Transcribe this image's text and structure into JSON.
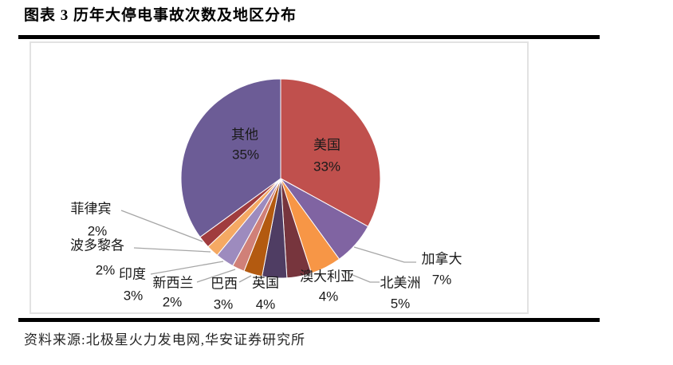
{
  "page": {
    "title": "图表 3 历年大停电事故次数及地区分布",
    "source": "资料来源:北极星火力发电网,华安证券研究所"
  },
  "chart_data": {
    "type": "pie",
    "title": "历年大停电事故次数及地区分布",
    "value_unit": "percent",
    "total": 100,
    "start_angle_deg": 0,
    "direction": "clockwise",
    "legend_position": "none",
    "leader_line_color": "#a6a6a6",
    "label_text_color": "#1a1a1a",
    "slices": [
      {
        "label": "美国",
        "value": 33,
        "pct_text": "33%",
        "color": "#C0504D",
        "label_inside": true
      },
      {
        "label": "加拿大",
        "value": 7,
        "pct_text": "7%",
        "color": "#8064A2",
        "label_inside": false
      },
      {
        "label": "北美洲",
        "value": 5,
        "pct_text": "5%",
        "color": "#F79646",
        "label_inside": false
      },
      {
        "label": "澳大利亚",
        "value": 4,
        "pct_text": "4%",
        "color": "#77353D",
        "label_inside": false
      },
      {
        "label": "英国",
        "value": 4,
        "pct_text": "4%",
        "color": "#4F3D63",
        "label_inside": false
      },
      {
        "label": "巴西",
        "value": 3,
        "pct_text": "3%",
        "color": "#B35A10",
        "label_inside": false
      },
      {
        "label": "新西兰",
        "value": 2,
        "pct_text": "2%",
        "color": "#D08078",
        "label_inside": false
      },
      {
        "label": "印度",
        "value": 3,
        "pct_text": "3%",
        "color": "#9D8BBE",
        "label_inside": false
      },
      {
        "label": "波多黎各",
        "value": 2,
        "pct_text": "2%",
        "color": "#F5A963",
        "label_inside": false
      },
      {
        "label": "菲律宾",
        "value": 2,
        "pct_text": "2%",
        "color": "#A03C3E",
        "label_inside": false
      },
      {
        "label": "其他",
        "value": 35,
        "pct_text": "35%",
        "color": "#6C5C96",
        "label_inside": true
      }
    ]
  }
}
